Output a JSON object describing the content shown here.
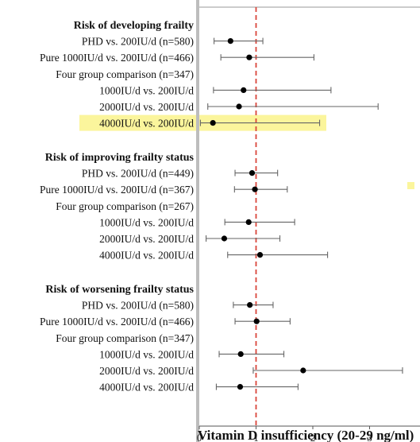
{
  "chart_data": {
    "type": "forest",
    "xlabel": "Vitamin D insufficiency (20-29 ng/ml)",
    "xlim": [
      0,
      3.9
    ],
    "xticks": [
      0,
      1,
      2,
      3
    ],
    "reference_line": 1,
    "highlight_color": "#fbf59c",
    "groups": [
      {
        "title": "Risk of developing frailty",
        "rows": [
          {
            "label": "PHD vs. 200IU/d (n=580)",
            "est": 0.55,
            "lo": 0.26,
            "hi": 1.12,
            "ci_shown": true,
            "highlight": false
          },
          {
            "label": "Pure 1000IU/d vs. 200IU/d (n=466)",
            "est": 0.88,
            "lo": 0.38,
            "hi": 2.02,
            "ci_shown": true,
            "highlight": false
          },
          {
            "label": "Four group comparison (n=347)",
            "est": null,
            "lo": null,
            "hi": null,
            "ci_shown": false,
            "highlight": false
          },
          {
            "label": "1000IU/d vs. 200IU/d",
            "est": 0.78,
            "lo": 0.25,
            "hi": 2.32,
            "ci_shown": true,
            "highlight": false
          },
          {
            "label": "2000IU/d vs. 200IU/d",
            "est": 0.7,
            "lo": 0.15,
            "hi": 3.15,
            "ci_shown": true,
            "highlight": false
          },
          {
            "label": "4000IU/d vs. 200IU/d",
            "est": 0.24,
            "lo": 0.02,
            "hi": 2.12,
            "ci_shown": true,
            "highlight": true
          }
        ]
      },
      {
        "title": "Risk of improving frailty status",
        "rows": [
          {
            "label": "PHD vs. 200IU/d (n=449)",
            "est": 0.93,
            "lo": 0.63,
            "hi": 1.38,
            "ci_shown": true,
            "highlight": false
          },
          {
            "label": "Pure 1000IU/d vs. 200IU/d (n=367)",
            "est": 0.98,
            "lo": 0.62,
            "hi": 1.55,
            "ci_shown": true,
            "highlight": false
          },
          {
            "label": "Four group comparison (n=267)",
            "est": null,
            "lo": null,
            "hi": null,
            "ci_shown": false,
            "highlight": false
          },
          {
            "label": "1000IU/d vs. 200IU/d",
            "est": 0.87,
            "lo": 0.45,
            "hi": 1.68,
            "ci_shown": true,
            "highlight": false
          },
          {
            "label": "2000IU/d vs. 200IU/d",
            "est": 0.44,
            "lo": 0.12,
            "hi": 1.42,
            "ci_shown": true,
            "highlight": false
          },
          {
            "label": "4000IU/d vs. 200IU/d",
            "est": 1.07,
            "lo": 0.5,
            "hi": 2.26,
            "ci_shown": true,
            "highlight": false
          }
        ]
      },
      {
        "title": "Risk of worsening frailty status",
        "rows": [
          {
            "label": "PHD vs. 200IU/d (n=580)",
            "est": 0.89,
            "lo": 0.6,
            "hi": 1.3,
            "ci_shown": true,
            "highlight": false
          },
          {
            "label": "Pure 1000IU/d vs. 200IU/d (n=466)",
            "est": 1.01,
            "lo": 0.63,
            "hi": 1.6,
            "ci_shown": true,
            "highlight": false
          },
          {
            "label": "Four group comparison (n=347)",
            "est": null,
            "lo": null,
            "hi": null,
            "ci_shown": false,
            "highlight": false
          },
          {
            "label": "1000IU/d vs. 200IU/d",
            "est": 0.73,
            "lo": 0.35,
            "hi": 1.49,
            "ci_shown": true,
            "highlight": false
          },
          {
            "label": "2000IU/d vs. 200IU/d",
            "est": 1.83,
            "lo": 0.95,
            "hi": 3.58,
            "ci_shown": true,
            "highlight": false
          },
          {
            "label": "4000IU/d vs. 200IU/d",
            "est": 0.72,
            "lo": 0.3,
            "hi": 1.74,
            "ci_shown": true,
            "highlight": false
          }
        ]
      }
    ]
  }
}
